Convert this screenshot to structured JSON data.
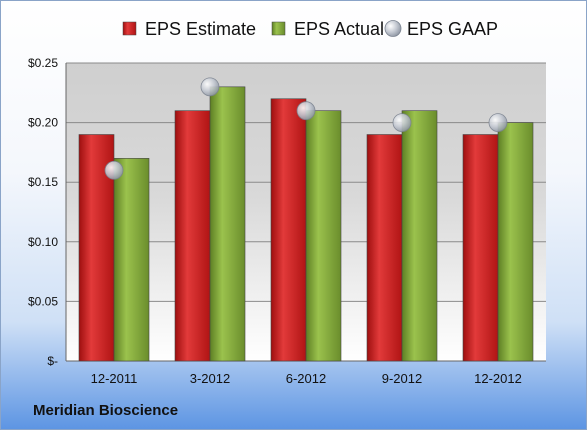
{
  "company": "Meridian Bioscience",
  "chart_data": {
    "type": "bar",
    "categories": [
      "12-2011",
      "3-2012",
      "6-2012",
      "9-2012",
      "12-2012"
    ],
    "series": [
      {
        "name": "EPS Estimate",
        "kind": "bar",
        "color": "#cc1f1f",
        "values": [
          0.19,
          0.21,
          0.22,
          0.19,
          0.19
        ]
      },
      {
        "name": "EPS Actual",
        "kind": "bar",
        "color": "#7fa63a",
        "values": [
          0.17,
          0.23,
          0.21,
          0.21,
          0.2
        ]
      },
      {
        "name": "EPS GAAP",
        "kind": "marker",
        "color": "#b8bec8",
        "values": [
          0.16,
          0.23,
          0.21,
          0.2,
          0.2
        ]
      }
    ],
    "y_ticks": [
      {
        "value": 0,
        "label": "$-"
      },
      {
        "value": 0.05,
        "label": "$0.05"
      },
      {
        "value": 0.1,
        "label": "$0.10"
      },
      {
        "value": 0.15,
        "label": "$0.15"
      },
      {
        "value": 0.2,
        "label": "$0.20"
      },
      {
        "value": 0.25,
        "label": "$0.25"
      }
    ],
    "ylim": [
      0,
      0.25
    ],
    "grid": true,
    "legend_position": "top",
    "title": "",
    "xlabel": "",
    "ylabel": ""
  }
}
